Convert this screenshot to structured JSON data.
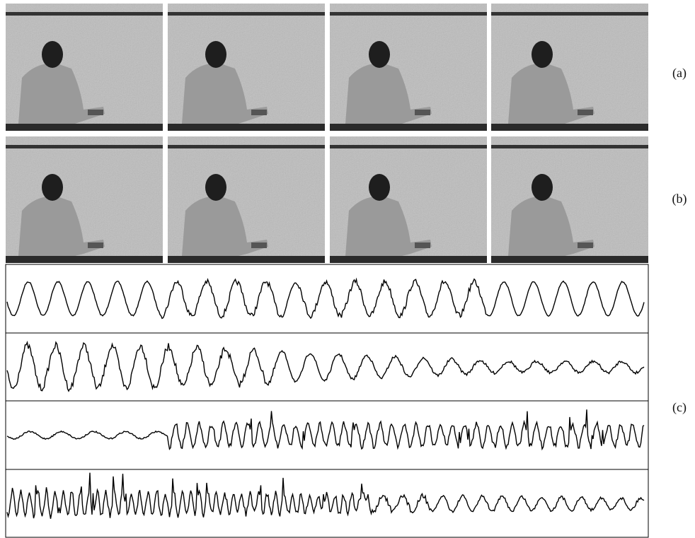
{
  "rows": [
    {
      "label": "(a)"
    },
    {
      "label": "(b)"
    }
  ],
  "signals": {
    "label": "(c)"
  }
}
